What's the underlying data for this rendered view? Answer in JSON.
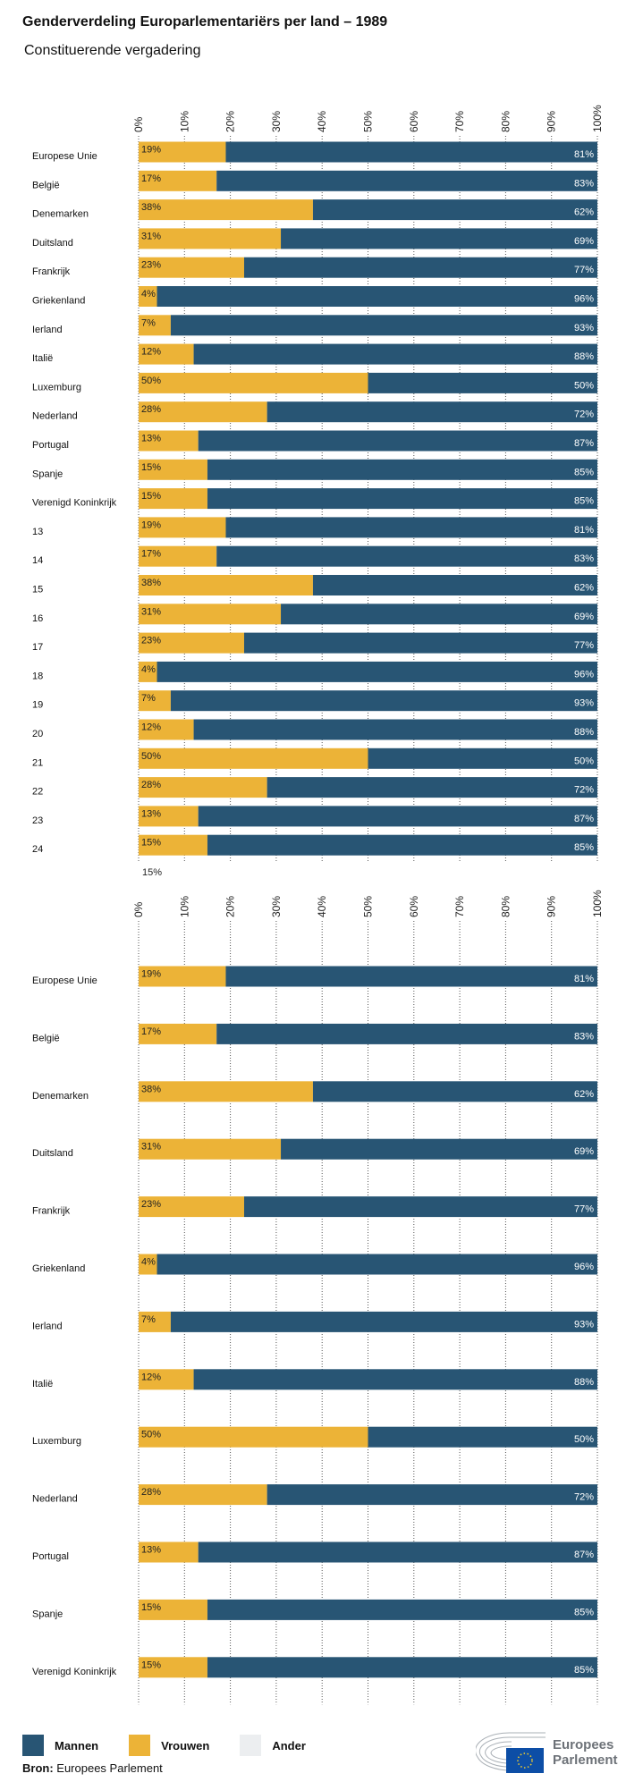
{
  "title": "Genderverdeling Europarlementariërs per land – 1989",
  "subtitle": "Constituerende vergadering",
  "colors": {
    "mannen": "#285574",
    "vrouwen": "#ecb337",
    "ander": "#eceef0",
    "grid": "#555555"
  },
  "chart_data": [
    {
      "type": "bar",
      "orientation": "horizontal",
      "stacked": true,
      "xlim": [
        0,
        100
      ],
      "ticks": [
        "0%",
        "10%",
        "20%",
        "30%",
        "40%",
        "50%",
        "60%",
        "70%",
        "80%",
        "90%",
        "100%"
      ],
      "grid": true,
      "categories": [
        "Europese Unie",
        "België",
        "Denemarken",
        "Duitsland",
        "Frankrijk",
        "Griekenland",
        "Ierland",
        "Italië",
        "Luxemburg",
        "Nederland",
        "Portugal",
        "Spanje",
        "Verenigd Koninkrijk",
        "13",
        "14",
        "15",
        "16",
        "17",
        "18",
        "19",
        "20",
        "21",
        "22",
        "23",
        "24"
      ],
      "series": [
        {
          "name": "Vrouwen",
          "values": [
            19,
            17,
            38,
            31,
            23,
            4,
            7,
            12,
            50,
            28,
            13,
            15,
            15,
            19,
            17,
            38,
            31,
            23,
            4,
            7,
            12,
            50,
            28,
            13,
            15
          ]
        },
        {
          "name": "Mannen",
          "values": [
            81,
            83,
            62,
            69,
            77,
            96,
            93,
            88,
            50,
            72,
            87,
            85,
            85,
            81,
            83,
            62,
            69,
            77,
            96,
            93,
            88,
            50,
            72,
            87,
            85
          ]
        }
      ],
      "extra_label": "15%"
    },
    {
      "type": "bar",
      "orientation": "horizontal",
      "stacked": true,
      "xlim": [
        0,
        100
      ],
      "ticks": [
        "0%",
        "10%",
        "20%",
        "30%",
        "40%",
        "50%",
        "60%",
        "70%",
        "80%",
        "90%",
        "100%"
      ],
      "grid": true,
      "categories": [
        "Europese Unie",
        "België",
        "Denemarken",
        "Duitsland",
        "Frankrijk",
        "Griekenland",
        "Ierland",
        "Italië",
        "Luxemburg",
        "Nederland",
        "Portugal",
        "Spanje",
        "Verenigd Koninkrijk"
      ],
      "series": [
        {
          "name": "Vrouwen",
          "values": [
            19,
            17,
            38,
            31,
            23,
            4,
            7,
            12,
            50,
            28,
            13,
            15,
            15
          ]
        },
        {
          "name": "Mannen",
          "values": [
            81,
            83,
            62,
            69,
            77,
            96,
            93,
            88,
            50,
            72,
            87,
            85,
            85
          ]
        }
      ]
    }
  ],
  "legend": [
    {
      "label": "Mannen",
      "color": "#285574"
    },
    {
      "label": "Vrouwen",
      "color": "#ecb337"
    },
    {
      "label": "Ander",
      "color": "#eceef0"
    }
  ],
  "source": {
    "prefix": "Bron:",
    "text": " Europees Parlement"
  },
  "logo": {
    "line1": "Europees",
    "line2": "Parlement"
  }
}
